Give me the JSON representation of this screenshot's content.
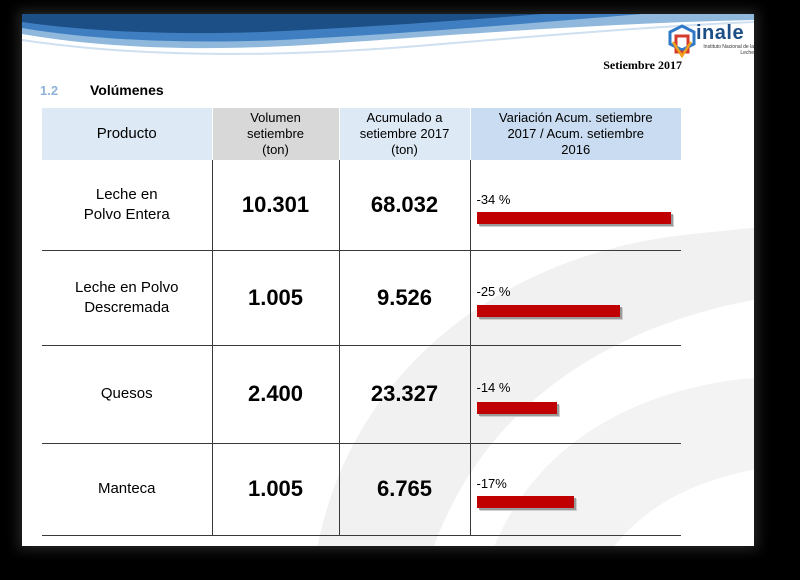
{
  "brand": {
    "name": "inale",
    "subtitle": "Instituto Nacional de la Leche",
    "colors": {
      "primary": "#1c4f86",
      "accent_red": "#c00000",
      "header_blue": "#dde9f5"
    }
  },
  "report_date": "Setiembre 2017",
  "section": {
    "number": "1.2",
    "title": "Volúmenes"
  },
  "table": {
    "headers": {
      "producto": "Producto",
      "volumen": "Volumen setiembre (ton)",
      "acumulado": "Acumulado a setiembre 2017 (ton)",
      "variacion": "Variación Acum. setiembre 2017 / Acum. setiembre 2016"
    },
    "rows": [
      {
        "producto": "Leche en Polvo Entera",
        "volumen": "10.301",
        "acumulado": "68.032",
        "variacion_label": "-34 %",
        "variacion_pct": -34
      },
      {
        "producto": "Leche en Polvo Descremada",
        "volumen": "1.005",
        "acumulado": "9.526",
        "variacion_label": "-25 %",
        "variacion_pct": -25
      },
      {
        "producto": "Quesos",
        "volumen": "2.400",
        "acumulado": "23.327",
        "variacion_label": "-14 %",
        "variacion_pct": -14
      },
      {
        "producto": "Manteca",
        "volumen": "1.005",
        "acumulado": "6.765",
        "variacion_label": "-17%",
        "variacion_pct": -17
      }
    ]
  }
}
